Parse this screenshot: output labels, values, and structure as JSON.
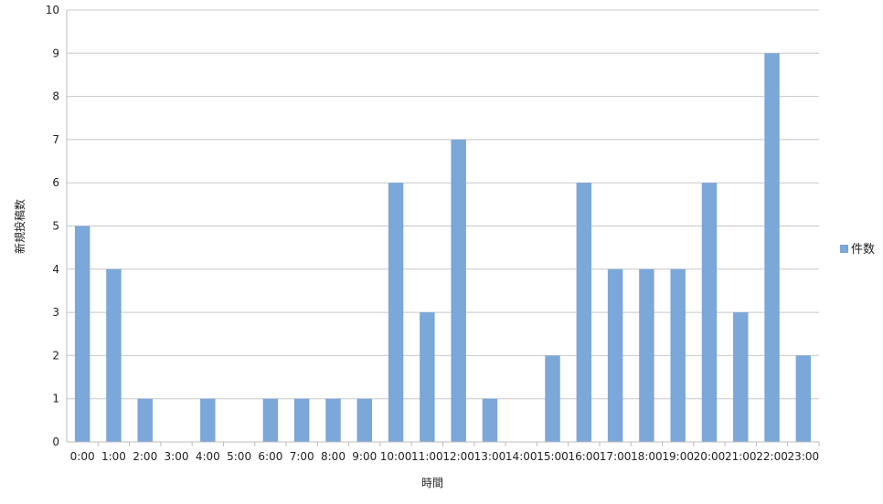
{
  "chart_data": {
    "type": "bar",
    "xlabel": "時間",
    "ylabel": "新規投稿数",
    "ylim": [
      0,
      10
    ],
    "ytick_step": 1,
    "grid": true,
    "legend_position": "right",
    "categories": [
      "0:00",
      "1:00",
      "2:00",
      "3:00",
      "4:00",
      "5:00",
      "6:00",
      "7:00",
      "8:00",
      "9:00",
      "10:00",
      "11:00",
      "12:00",
      "13:00",
      "14:00",
      "15:00",
      "16:00",
      "17:00",
      "18:00",
      "19:00",
      "20:00",
      "21:00",
      "22:00",
      "23:00"
    ],
    "series": [
      {
        "name": "件数",
        "color": "#7ba7d9",
        "values": [
          5,
          4,
          1,
          0,
          1,
          0,
          1,
          1,
          1,
          1,
          6,
          3,
          7,
          1,
          0,
          2,
          6,
          4,
          4,
          4,
          6,
          3,
          9,
          2
        ]
      }
    ]
  }
}
